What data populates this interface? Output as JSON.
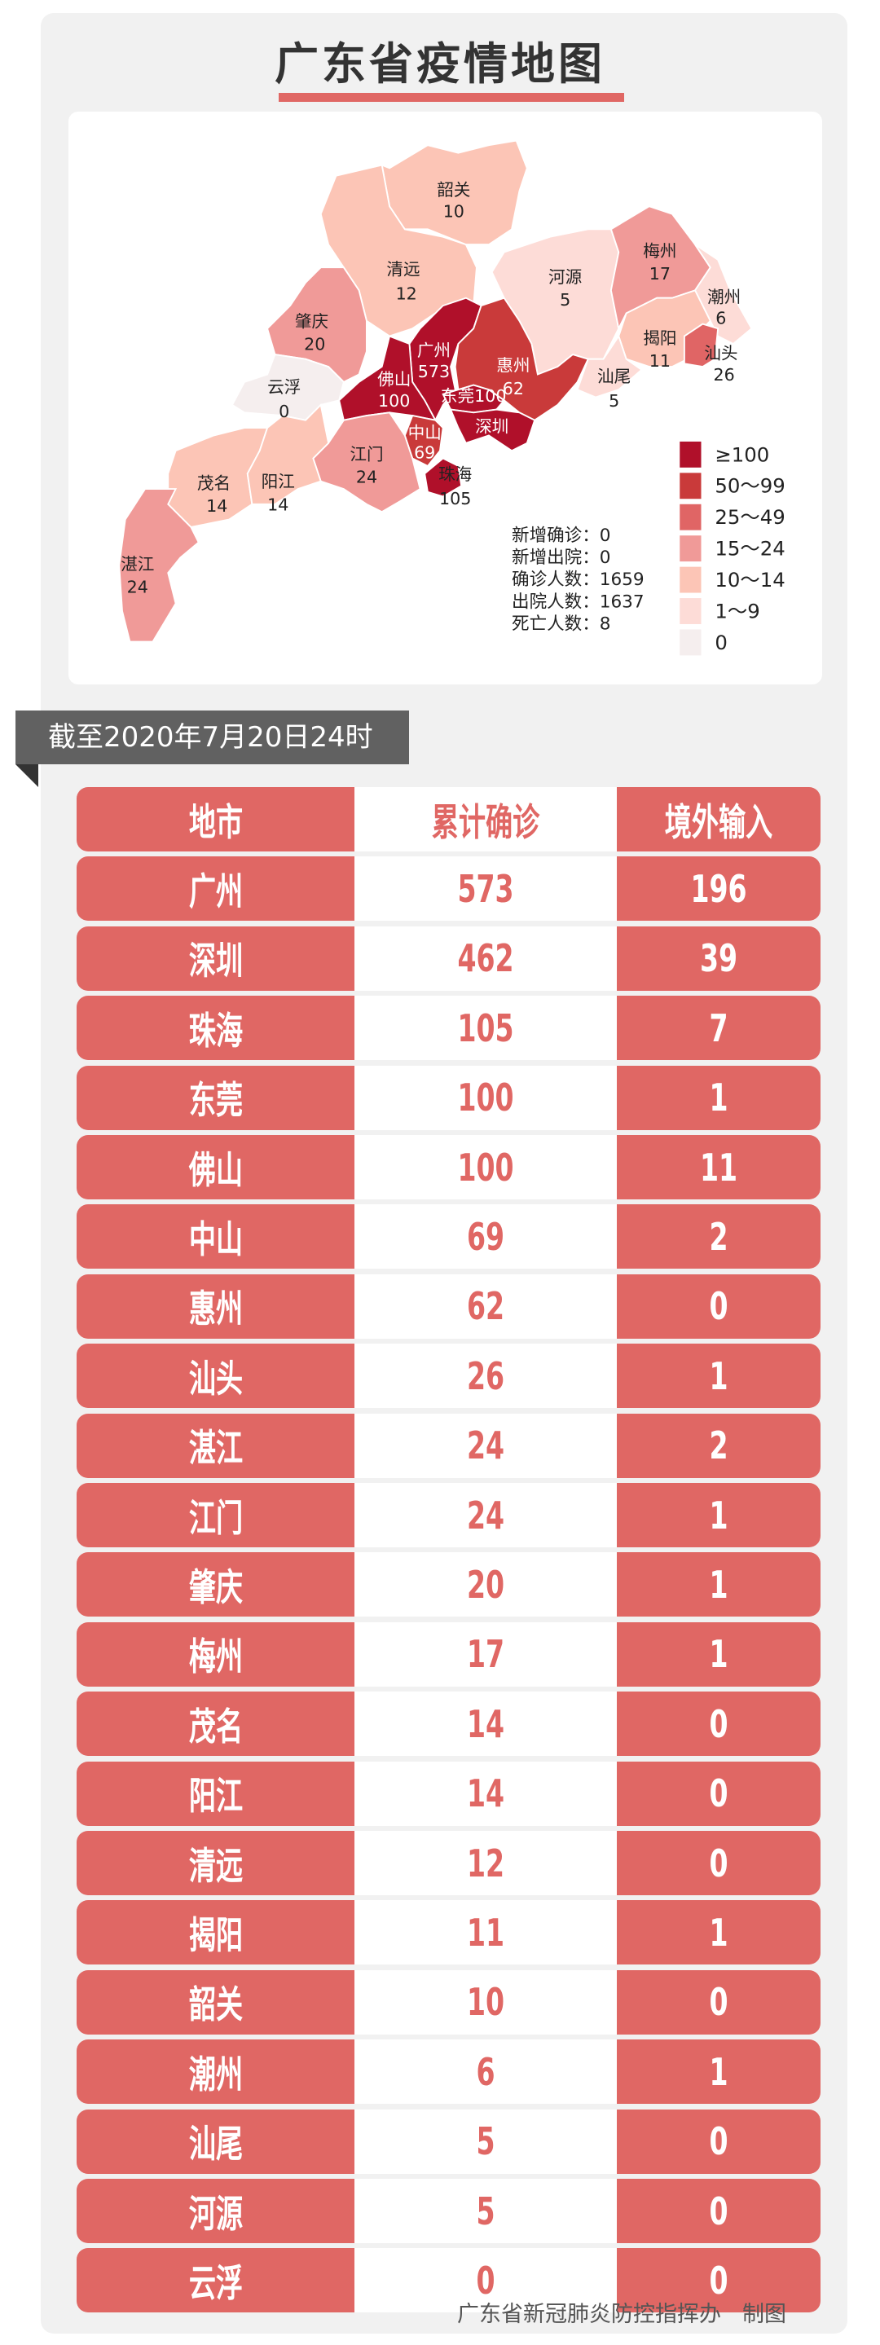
{
  "title": "广东省疫情地图",
  "colors": {
    "ge100": "#b0102a",
    "c50_99": "#c93a3a",
    "c25_49": "#e06565",
    "c15_24": "#f09a98",
    "c10_14": "#fcc5b6",
    "c1_9": "#fddcd7",
    "c0": "#f5eeee",
    "table_red": "#e06764",
    "banner_gray": "#616161"
  },
  "map": {
    "regions": [
      {
        "name": "韶关",
        "value": "10",
        "level": "c10_14"
      },
      {
        "name": "清远",
        "value": "12",
        "level": "c10_14"
      },
      {
        "name": "河源",
        "value": "5",
        "level": "c1_9"
      },
      {
        "name": "梅州",
        "value": "17",
        "level": "c15_24"
      },
      {
        "name": "潮州",
        "value": "6",
        "level": "c1_9"
      },
      {
        "name": "揭阳",
        "value": "11",
        "level": "c10_14"
      },
      {
        "name": "汕头",
        "value": "26",
        "level": "c25_49"
      },
      {
        "name": "肇庆",
        "value": "20",
        "level": "c15_24"
      },
      {
        "name": "广州",
        "value": "573",
        "level": "ge100"
      },
      {
        "name": "惠州",
        "value": "62",
        "level": "c50_99"
      },
      {
        "name": "佛山",
        "value": "100",
        "level": "ge100"
      },
      {
        "name": "东莞",
        "value": "100",
        "level": "ge100"
      },
      {
        "name": "云浮",
        "value": "0",
        "level": "c0"
      },
      {
        "name": "深圳",
        "value": "462",
        "level": "ge100"
      },
      {
        "name": "汕尾",
        "value": "5",
        "level": "c1_9"
      },
      {
        "name": "中山",
        "value": "69",
        "level": "c50_99"
      },
      {
        "name": "珠海",
        "value": "105",
        "level": "ge100"
      },
      {
        "name": "江门",
        "value": "24",
        "level": "c15_24"
      },
      {
        "name": "茂名",
        "value": "14",
        "level": "c10_14"
      },
      {
        "name": "阳江",
        "value": "14",
        "level": "c10_14"
      },
      {
        "name": "湛江",
        "value": "24",
        "level": "c15_24"
      }
    ],
    "stats": [
      "新增确诊：0",
      "新增出院：0",
      "确诊人数：1659",
      "出院人数：1637",
      "死亡人数：8"
    ],
    "legend": [
      {
        "label": "≥100",
        "level": "ge100"
      },
      {
        "label": "50～99",
        "level": "c50_99"
      },
      {
        "label": "25～49",
        "level": "c25_49"
      },
      {
        "label": "15～24",
        "level": "c15_24"
      },
      {
        "label": "10～14",
        "level": "c10_14"
      },
      {
        "label": "1～9",
        "level": "c1_9"
      },
      {
        "label": "0",
        "level": "c0"
      }
    ]
  },
  "banner": "截至2020年7月20日24时",
  "table": {
    "headers": [
      "地市",
      "累计确诊",
      "境外输入"
    ],
    "rows": [
      [
        "广州",
        "573",
        "196"
      ],
      [
        "深圳",
        "462",
        "39"
      ],
      [
        "珠海",
        "105",
        "7"
      ],
      [
        "东莞",
        "100",
        "1"
      ],
      [
        "佛山",
        "100",
        "11"
      ],
      [
        "中山",
        "69",
        "2"
      ],
      [
        "惠州",
        "62",
        "0"
      ],
      [
        "汕头",
        "26",
        "1"
      ],
      [
        "湛江",
        "24",
        "2"
      ],
      [
        "江门",
        "24",
        "1"
      ],
      [
        "肇庆",
        "20",
        "1"
      ],
      [
        "梅州",
        "17",
        "1"
      ],
      [
        "茂名",
        "14",
        "0"
      ],
      [
        "阳江",
        "14",
        "0"
      ],
      [
        "清远",
        "12",
        "0"
      ],
      [
        "揭阳",
        "11",
        "1"
      ],
      [
        "韶关",
        "10",
        "0"
      ],
      [
        "潮州",
        "6",
        "1"
      ],
      [
        "汕尾",
        "5",
        "0"
      ],
      [
        "河源",
        "5",
        "0"
      ],
      [
        "云浮",
        "0",
        "0"
      ]
    ]
  },
  "footer": {
    "org": "广东省新冠肺炎防控指挥办",
    "suffix": "制图"
  }
}
